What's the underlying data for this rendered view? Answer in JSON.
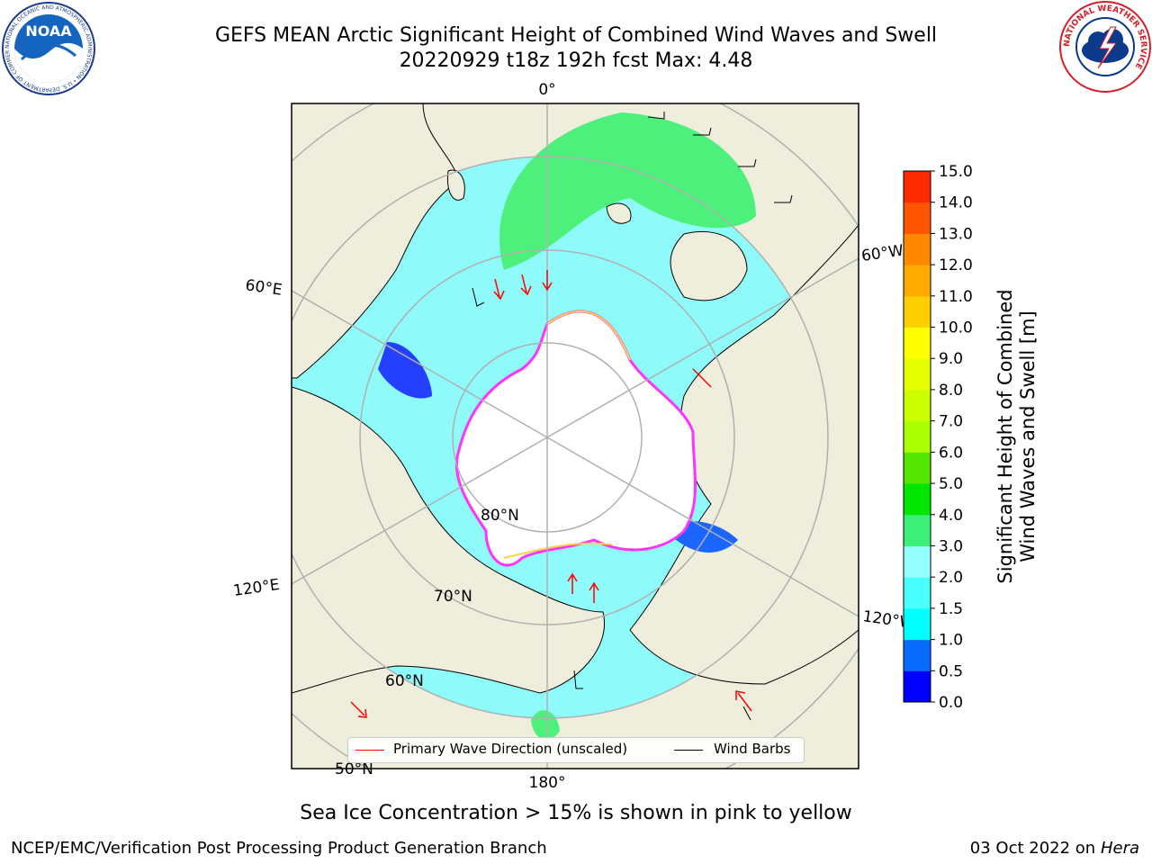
{
  "title_line1": "GEFS MEAN Arctic Significant Height of Combined Wind Waves and Swell",
  "title_line2": "20220929 t18z 192h fcst   Max: 4.48",
  "map": {
    "meridian_labels": {
      "lon_0": "0°",
      "lon_60w": "60°W",
      "lon_60e": "60°E",
      "lon_120e": "120°E",
      "lon_120w": "120°W",
      "lon_180": "180°"
    },
    "parallel_labels": {
      "lat_80": "80°N",
      "lat_70": "70°N",
      "lat_60": "60°N",
      "lat_50": "50°N"
    },
    "colors": {
      "land": "#efeddb",
      "ice": "#ffffff",
      "ice_edge": "#ff33ff",
      "ice_fringe": "#ffd24a",
      "grid": "#b0b0b0",
      "arrow": "#ff0000",
      "barb": "#000000"
    }
  },
  "colorbar": {
    "label_line1": "Significant Height of Combined",
    "label_line2": "Wind Waves and Swell [m]",
    "ticks": [
      "0.0",
      "0.5",
      "1.0",
      "1.5",
      "2.0",
      "3.0",
      "4.0",
      "5.0",
      "6.0",
      "7.0",
      "8.0",
      "9.0",
      "10.0",
      "11.0",
      "12.0",
      "13.0",
      "14.0",
      "15.0"
    ],
    "colors": [
      "#0000ff",
      "#0a6cff",
      "#00ffff",
      "#4affff",
      "#96ffff",
      "#3df07a",
      "#00e600",
      "#55e600",
      "#aaff00",
      "#ccff00",
      "#e6ff00",
      "#ffff00",
      "#ffd000",
      "#ffaa00",
      "#ff8800",
      "#ff5500",
      "#ff2a00"
    ]
  },
  "legend": {
    "primary_wave_label": "Primary Wave Direction (unscaled)",
    "wind_barbs_label": "Wind Barbs",
    "primary_color": "#ff0000",
    "barb_color": "#000000"
  },
  "footer": {
    "note": "Sea Ice Concentration > 15% is shown in pink to yellow",
    "left": "NCEP/EMC/Verification Post Processing Product Generation Branch",
    "right_prefix": "03 Oct 2022 on ",
    "right_host": "Hera"
  },
  "logos": {
    "noaa_text": "NOAA",
    "noaa_ring": "NATIONAL OCEANIC AND ATMOSPHERIC ADMINISTRATION • U.S. DEPARTMENT OF COMMERCE",
    "nws_ring": "NATIONAL WEATHER SERVICE"
  }
}
